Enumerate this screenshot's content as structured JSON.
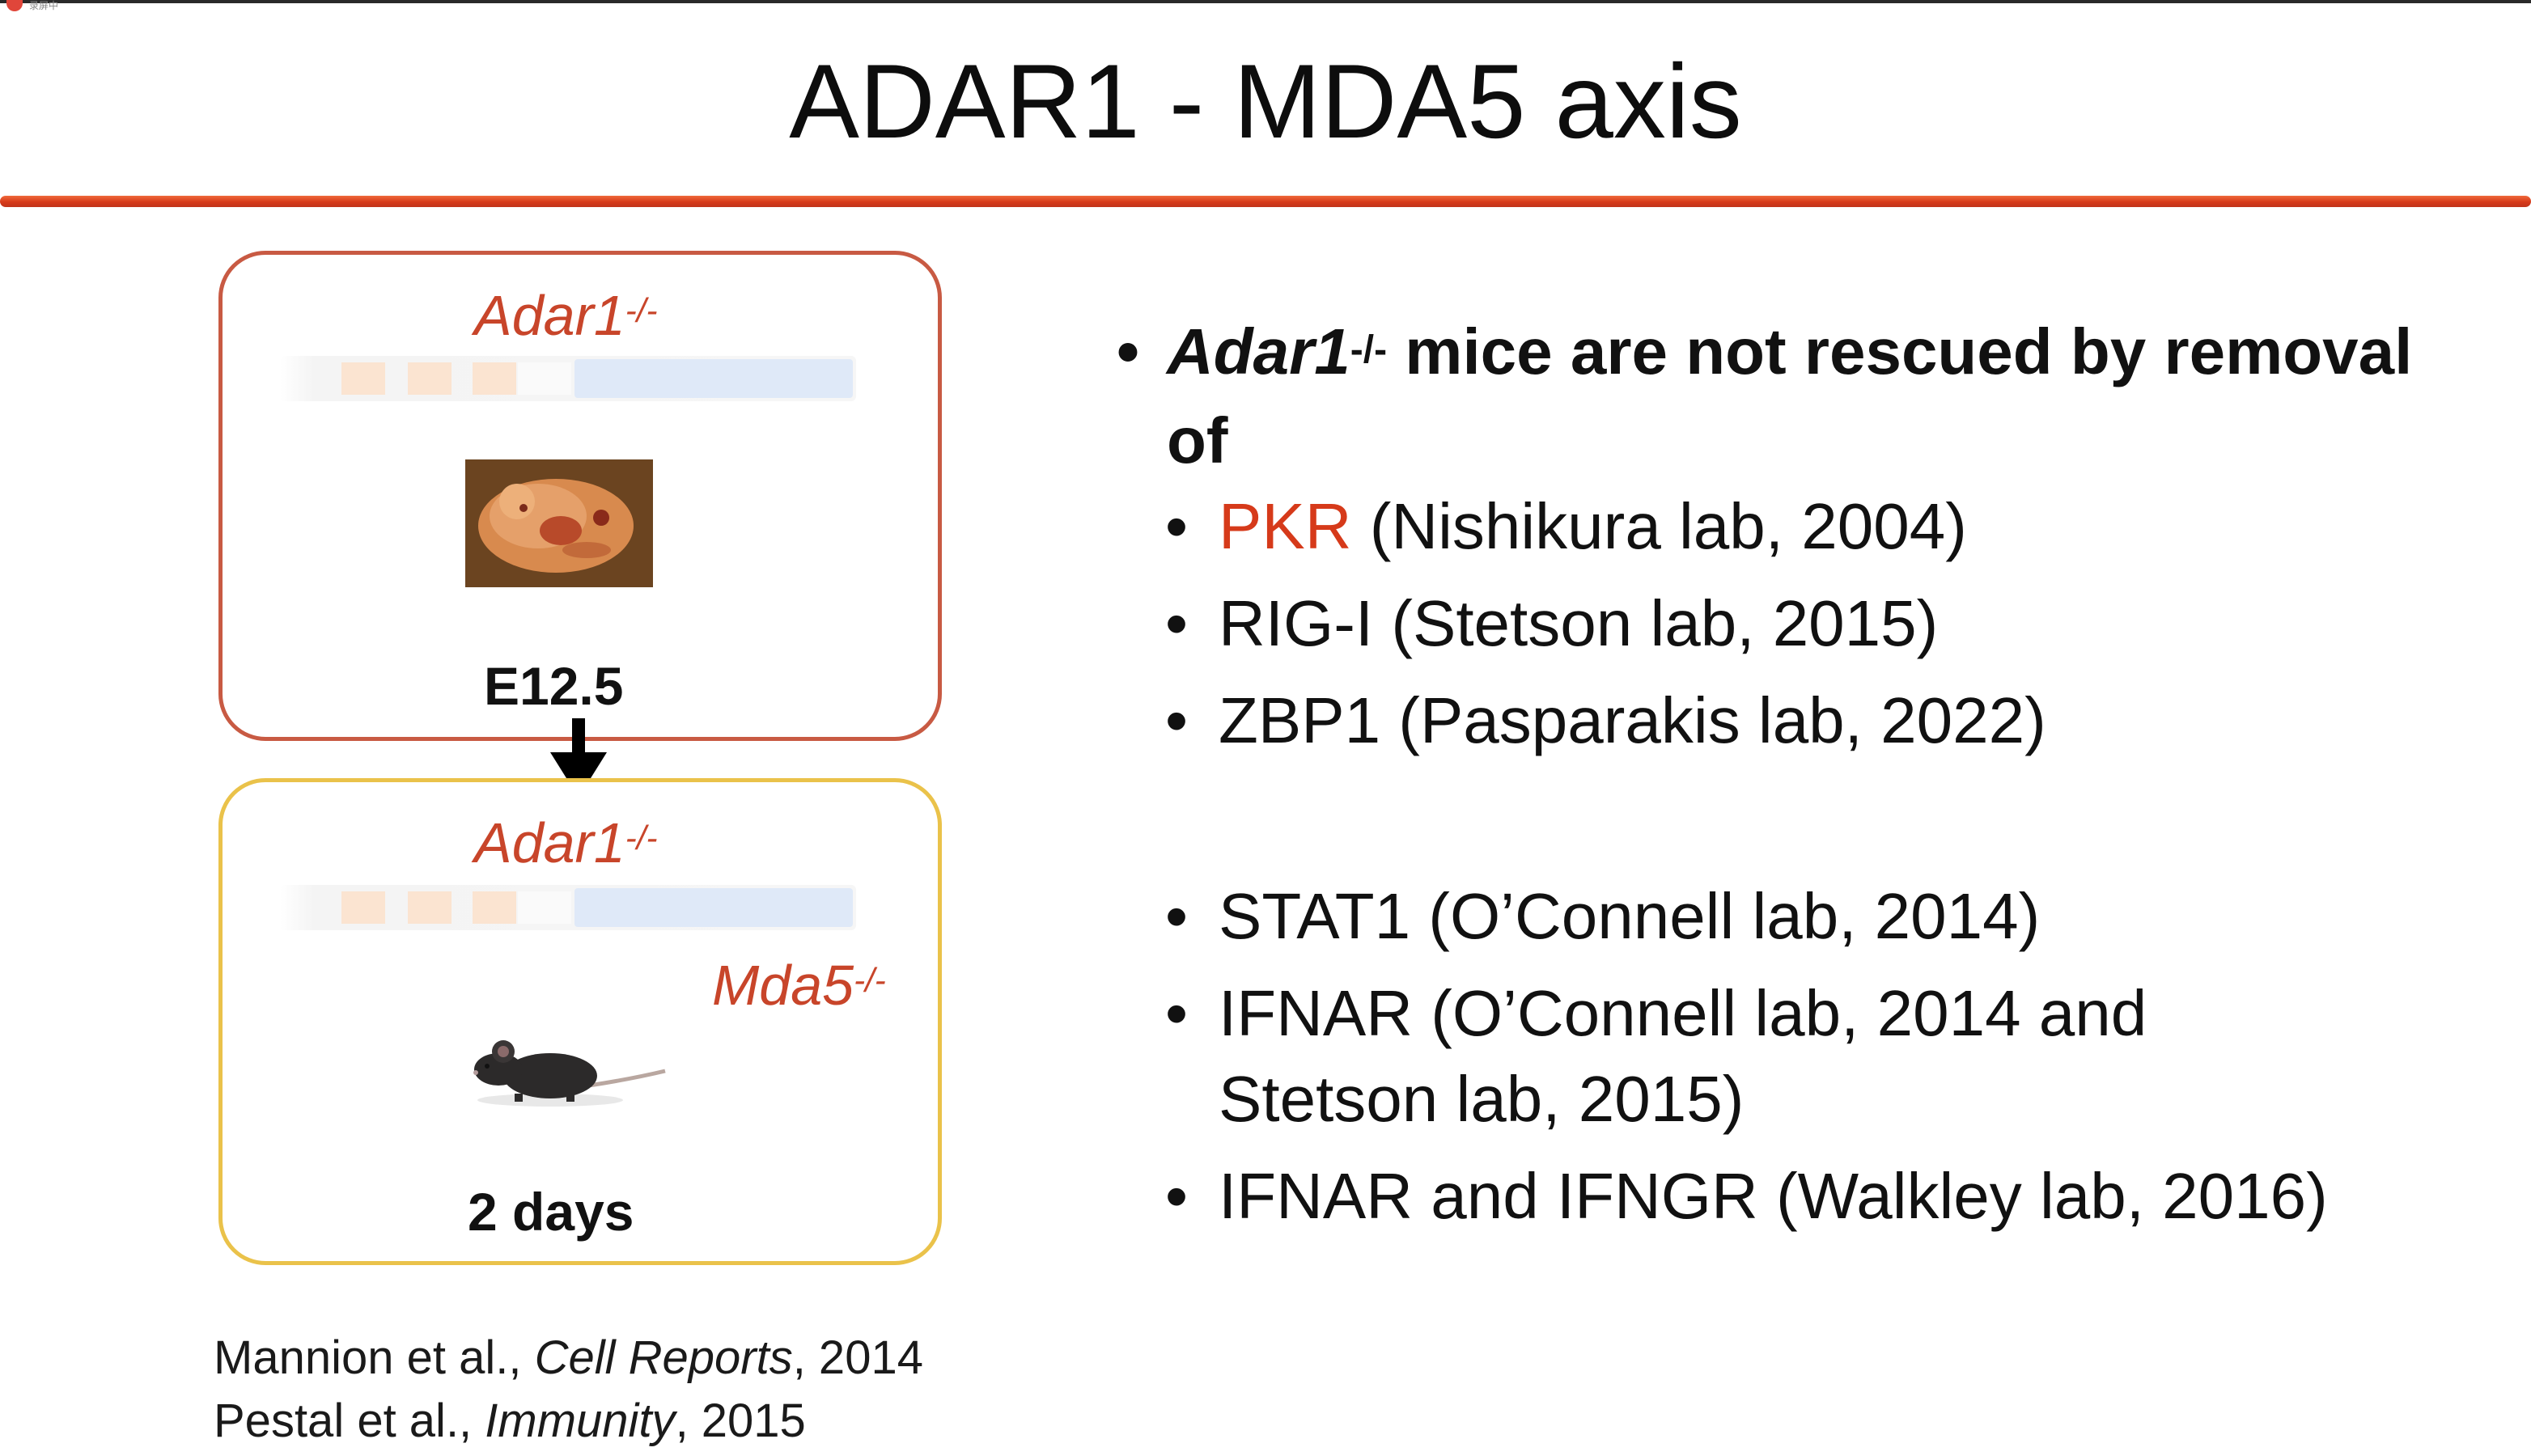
{
  "window": {
    "recording_indicator": "录屏中"
  },
  "slide": {
    "title": "ADAR1 - MDA5 axis",
    "colors": {
      "accent": "#d63a1a",
      "box1_border": "#c85a43",
      "box2_border": "#eac24a",
      "genotype_text": "#c8452a"
    }
  },
  "left_panel": {
    "box1": {
      "genotype": "Adar1",
      "genotype_sup": "-/-",
      "stage": "E12.5",
      "image": "embryo-photo"
    },
    "box2": {
      "genotype": "Adar1",
      "genotype_sup": "-/-",
      "genotype2": "Mda5",
      "genotype2_sup": "-/-",
      "stage": "2 days",
      "image": "mouse-photo"
    },
    "arrow_icon": "down-arrow-icon"
  },
  "references": [
    {
      "authors": "Mannion et al., ",
      "journal": "Cell Reports",
      "year": ", 2014"
    },
    {
      "authors": "Pestal et al., ",
      "journal": "Immunity",
      "year": ", 2015"
    }
  ],
  "bullets": {
    "main": {
      "gene": "Adar1",
      "gene_sup": "-/-",
      "text": " mice are not rescued by removal of"
    },
    "group1": [
      {
        "gene": "PKR",
        "rest": " (Nishikura lab, 2004)"
      },
      {
        "gene": "RIG-I",
        "rest": " (Stetson lab, 2015)"
      },
      {
        "gene": "ZBP1",
        "rest": " (Pasparakis lab, 2022)"
      }
    ],
    "group2": [
      {
        "text": "STAT1 (O’Connell lab, 2014)"
      },
      {
        "line1": "IFNAR (O’Connell lab, 2014 and",
        "line2": "Stetson lab, 2015)"
      },
      {
        "text": "IFNAR and IFNGR (Walkley lab, 2016)"
      }
    ]
  }
}
